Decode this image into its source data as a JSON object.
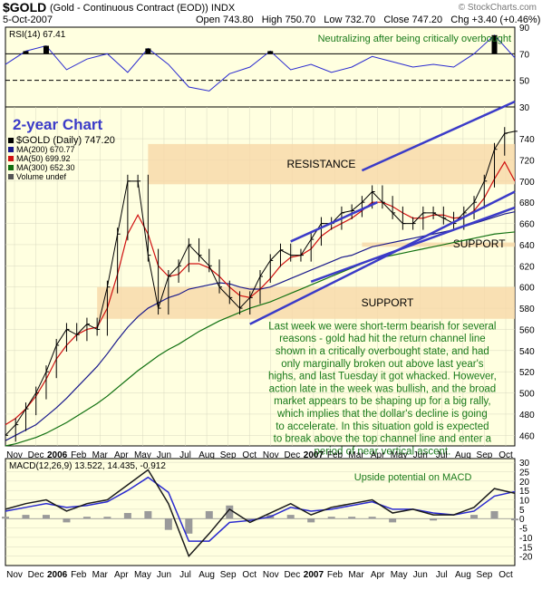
{
  "header": {
    "symbol": "$GOLD",
    "description": "(Gold - Continuous Contract (EOD)) INDX",
    "watermark": "© StockCharts.com",
    "date": "5-Oct-2007",
    "ohlc": "Open 743.80   High 750.70   Low 732.70   Close 747.20   Chg +3.40 (+0.46%)"
  },
  "colors": {
    "panel_bg": "#ffffe0",
    "zone": "#f8d8a8",
    "channel": "#3b3bc8",
    "ma200": "#1a1a8c",
    "ma50": "#d01010",
    "ma300": "#107010",
    "note": "#1a7a1a",
    "rsi": "#2a2ad0",
    "macd": "#1a1a1a",
    "signal": "#2a2ad0",
    "hist": "#9a9a9a"
  },
  "chart_data": [
    {
      "type": "line",
      "panel": "rsi",
      "title": "RSI(14) 67.41",
      "annotation": "Neutralizing after being critically overbought",
      "ylim": [
        30,
        90
      ],
      "ticks": [
        30,
        50,
        70,
        90
      ],
      "ref_lines": [
        70,
        50
      ],
      "series": [
        {
          "name": "RSI(14)",
          "x": [
            0,
            4,
            8,
            12,
            16,
            20,
            24,
            28,
            32,
            36,
            40,
            44,
            48,
            52,
            56,
            60,
            64,
            68,
            72,
            76,
            80,
            84,
            88,
            92,
            96,
            100
          ],
          "values": [
            62,
            72,
            76,
            58,
            66,
            70,
            56,
            74,
            62,
            45,
            42,
            55,
            60,
            72,
            58,
            62,
            56,
            60,
            68,
            64,
            60,
            62,
            60,
            70,
            84,
            67
          ]
        }
      ]
    },
    {
      "type": "candlestick",
      "panel": "price",
      "annotation_title": "2-year Chart",
      "legend": [
        "$GOLD (Daily) 747.20",
        "MA(200) 670.77",
        "MA(50) 699.92",
        "MA(300) 652.30",
        "Volume undef"
      ],
      "ylim": [
        450,
        770
      ],
      "ticks": [
        460,
        480,
        500,
        520,
        540,
        560,
        580,
        600,
        620,
        640,
        660,
        680,
        700,
        720,
        740
      ],
      "x_labels": [
        "Nov",
        "Dec",
        "2006",
        "Feb",
        "Mar",
        "Apr",
        "May",
        "Jun",
        "Jul",
        "Aug",
        "Sep",
        "Oct",
        "Nov",
        "Dec",
        "2007",
        "Feb",
        "Mar",
        "Apr",
        "May",
        "Jun",
        "Jul",
        "Aug",
        "Sep",
        "Oct"
      ],
      "zones": [
        {
          "label": "RESISTANCE",
          "y_top": 735,
          "y_bottom": 697
        },
        {
          "label": "SUPPORT",
          "y_top": 600,
          "y_bottom": 570
        },
        {
          "label": "SUPPORT",
          "y_top": 642,
          "y_bottom": 638
        }
      ],
      "close": {
        "x": [
          0,
          2,
          4,
          6,
          8,
          10,
          12,
          14,
          16,
          18,
          20,
          22,
          24,
          26,
          28,
          30,
          32,
          34,
          36,
          38,
          40,
          42,
          44,
          46,
          48,
          50,
          52,
          54,
          56,
          58,
          60,
          62,
          64,
          66,
          68,
          70,
          72,
          74,
          76,
          78,
          80,
          82,
          84,
          86,
          88,
          90,
          92,
          94,
          96,
          98,
          100
        ],
        "values": [
          460,
          470,
          485,
          500,
          520,
          545,
          560,
          555,
          565,
          560,
          600,
          650,
          700,
          700,
          630,
          580,
          610,
          620,
          640,
          630,
          620,
          600,
          590,
          580,
          590,
          610,
          625,
          635,
          630,
          630,
          645,
          660,
          660,
          670,
          672,
          680,
          690,
          680,
          670,
          660,
          660,
          670,
          670,
          665,
          660,
          670,
          680,
          700,
          730,
          745,
          747
        ]
      },
      "ma50": [
        470,
        476,
        485,
        497,
        513,
        532,
        545,
        555,
        560,
        562,
        580,
        612,
        650,
        668,
        650,
        620,
        610,
        612,
        622,
        622,
        618,
        610,
        600,
        592,
        590,
        598,
        608,
        620,
        628,
        630,
        636,
        648,
        655,
        660,
        665,
        672,
        680,
        680,
        676,
        670,
        665,
        665,
        668,
        668,
        665,
        666,
        672,
        684,
        702,
        718,
        700
      ],
      "ma200": [
        455,
        460,
        465,
        470,
        478,
        486,
        495,
        505,
        515,
        525,
        537,
        550,
        562,
        572,
        580,
        585,
        590,
        593,
        598,
        600,
        602,
        604,
        603,
        600,
        598,
        598,
        600,
        604,
        608,
        612,
        616,
        620,
        624,
        628,
        630,
        634,
        638,
        640,
        642,
        644,
        646,
        648,
        650,
        652,
        654,
        657,
        660,
        663,
        666,
        669,
        671
      ],
      "ma300": [
        450,
        452,
        455,
        458,
        462,
        467,
        472,
        478,
        484,
        490,
        497,
        505,
        513,
        521,
        528,
        535,
        541,
        546,
        552,
        558,
        563,
        568,
        572,
        576,
        580,
        583,
        586,
        590,
        594,
        598,
        602,
        606,
        610,
        614,
        618,
        622,
        626,
        628,
        630,
        632,
        634,
        636,
        638,
        640,
        642,
        644,
        646,
        648,
        650,
        651,
        652
      ],
      "channel_lines": [
        {
          "from": [
            56,
            643
          ],
          "to": [
            73,
            680
          ]
        },
        {
          "from": [
            70,
            710
          ],
          "to": [
            100,
            775
          ]
        },
        {
          "from": [
            48,
            565
          ],
          "to": [
            100,
            690
          ]
        },
        {
          "from": [
            60,
            605
          ],
          "to": [
            100,
            675
          ]
        }
      ],
      "commentary": "Last week we were short-term bearish for several reasons - gold had hit the return channel line shown in a critically overbought state, and had only marginally broken out above last year's highs, and last Tuesday it got whacked. However, action late in the week was bullish, and the broad market appears to be shaping up for a big rally, which implies that the dollar's decline is going to accelerate. In this situation gold is expected to break above the top channel line and enter a period of near vertical ascent."
    },
    {
      "type": "line",
      "panel": "macd",
      "title": "MACD(12,26,9) 13.522, 14.435, -0.912",
      "annotation": "Upside potential on MACD",
      "ylim": [
        -25,
        32
      ],
      "ticks": [
        -20,
        -15,
        -10,
        -5,
        0,
        5,
        10,
        15,
        20,
        25,
        30
      ],
      "x_labels": [
        "Nov",
        "Dec",
        "2006",
        "Feb",
        "Mar",
        "Apr",
        "May",
        "Jun",
        "Jul",
        "Aug",
        "Sep",
        "Oct",
        "Nov",
        "Dec",
        "2007",
        "Feb",
        "Mar",
        "Apr",
        "May",
        "Jun",
        "Jul",
        "Aug",
        "Sep",
        "Oct"
      ],
      "series": [
        {
          "name": "MACD",
          "x": [
            0,
            4,
            8,
            12,
            16,
            20,
            24,
            28,
            32,
            36,
            40,
            44,
            48,
            52,
            56,
            60,
            64,
            68,
            72,
            76,
            80,
            84,
            88,
            92,
            96,
            100
          ],
          "values": [
            5,
            8,
            10,
            4,
            8,
            10,
            18,
            26,
            8,
            -20,
            -8,
            5,
            -2,
            3,
            8,
            2,
            6,
            8,
            10,
            3,
            5,
            2,
            2,
            6,
            16,
            13.5
          ]
        },
        {
          "name": "Signal",
          "x": [
            0,
            4,
            8,
            12,
            16,
            20,
            24,
            28,
            32,
            36,
            40,
            44,
            48,
            52,
            56,
            60,
            64,
            68,
            72,
            76,
            80,
            84,
            88,
            92,
            96,
            100
          ],
          "values": [
            4,
            6,
            8,
            6,
            7,
            9,
            15,
            22,
            14,
            -12,
            -12,
            -2,
            -1,
            1,
            6,
            4,
            5,
            7,
            9,
            5,
            5,
            3,
            2,
            4,
            12,
            14.4
          ]
        }
      ]
    }
  ]
}
